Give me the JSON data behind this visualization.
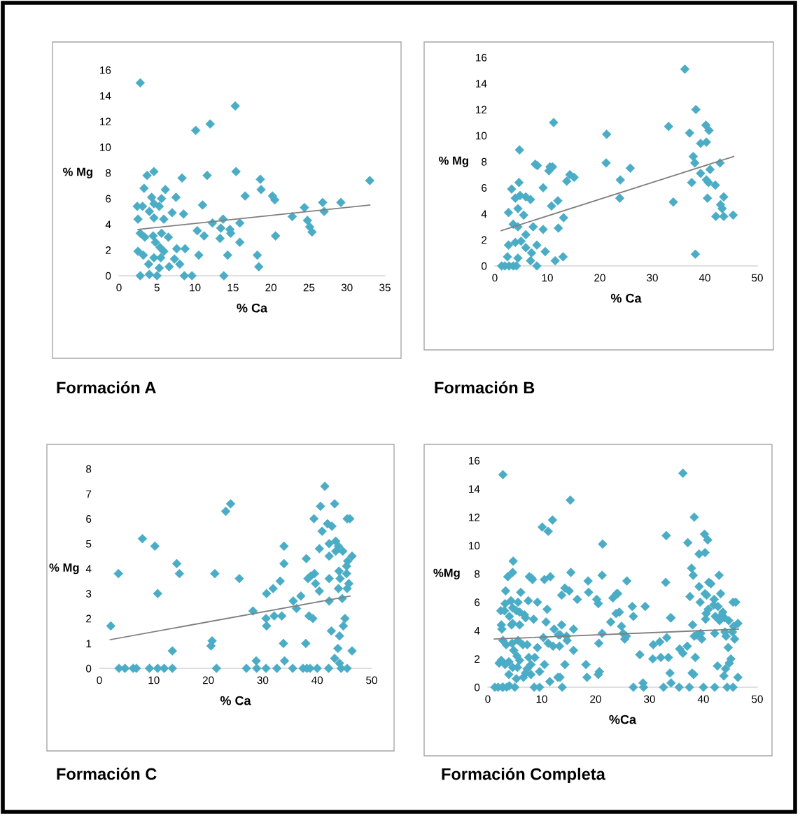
{
  "chart_data": [
    {
      "type": "scatter",
      "title": "Formación A",
      "xlabel": "% Ca",
      "ylabel": "% Mg",
      "xlim": [
        0,
        35
      ],
      "xticks": [
        0,
        5,
        10,
        15,
        20,
        25,
        30,
        35
      ],
      "ylim": [
        0,
        16
      ],
      "yticks": [
        0,
        2,
        4,
        6,
        8,
        10,
        12,
        14,
        16
      ],
      "grid": false,
      "series": [
        {
          "marker": "diamond",
          "color": "#4bacc6",
          "x": [
            2.8,
            15.3,
            12.0,
            10.1,
            4.6,
            3.7,
            15.4,
            11.6,
            8.3,
            18.6,
            33.0,
            3.3,
            6.1,
            18.7,
            16.6,
            7.5,
            20.2,
            20.5,
            29.2,
            26.8,
            2.4,
            3.1,
            11.0,
            24.4,
            27.0,
            4.3,
            4.6,
            5.3,
            5.6,
            4.0,
            4.6,
            2.5,
            7.0,
            8.5,
            5.9,
            22.8,
            13.7,
            15.9,
            12.3,
            24.8,
            25.1,
            25.4,
            10.3,
            11.2,
            13.4,
            14.6,
            14.7,
            13.3,
            20.6,
            2.8,
            3.4,
            4.5,
            5.6,
            6.5,
            4.8,
            15.9,
            5.4,
            2.5,
            3.2,
            5.9,
            7.6,
            8.7,
            7.3,
            8.0,
            5.5,
            4.6,
            10.5,
            14.3,
            18.2,
            18.4,
            3.9,
            6.6,
            5.3,
            2.8,
            5.0,
            8.6,
            9.6,
            13.8,
            4.0
          ],
          "values": [
            15.0,
            13.2,
            11.8,
            11.3,
            8.1,
            7.8,
            8.1,
            7.8,
            7.6,
            7.5,
            7.4,
            6.8,
            6.7,
            6.7,
            6.2,
            6.1,
            6.2,
            5.9,
            5.7,
            5.7,
            5.4,
            5.4,
            5.5,
            5.3,
            5.0,
            6.1,
            5.6,
            5.4,
            6.0,
            5.0,
            4.5,
            4.4,
            4.9,
            4.8,
            4.4,
            4.6,
            4.4,
            4.1,
            4.1,
            4.3,
            3.8,
            3.4,
            3.5,
            3.1,
            3.7,
            3.6,
            3.3,
            2.9,
            3.1,
            3.3,
            3.0,
            3.1,
            3.3,
            3.0,
            2.6,
            2.6,
            2.2,
            1.9,
            1.6,
            1.9,
            2.1,
            2.1,
            1.3,
            0.9,
            1.4,
            1.4,
            1.6,
            1.6,
            1.6,
            0.7,
            0.9,
            0.7,
            0.6,
            0,
            0,
            0,
            0,
            0,
            0.1
          ]
        },
        {
          "type": "line",
          "color": "#7f7f7f",
          "x": [
            2.5,
            33
          ],
          "values": [
            3.6,
            5.5
          ]
        }
      ]
    },
    {
      "type": "scatter",
      "title": "Formación B",
      "xlabel": "% Ca",
      "ylabel": "% Mg",
      "xlim": [
        0,
        50
      ],
      "xticks": [
        0,
        10,
        20,
        30,
        40,
        50
      ],
      "ylim": [
        0,
        16
      ],
      "yticks": [
        0,
        2,
        4,
        6,
        8,
        10,
        12,
        14,
        16
      ],
      "grid": false,
      "series": [
        {
          "marker": "diamond",
          "color": "#4bacc6",
          "x": [
            36.2,
            38.3,
            11.2,
            21.3,
            33.1,
            37.1,
            40.2,
            40.8,
            39.2,
            40.3,
            4.7,
            7.7,
            8.1,
            21.2,
            25.8,
            37.8,
            38.1,
            42.9,
            10.5,
            11.0,
            10.3,
            14.3,
            15.1,
            13.7,
            23.9,
            39.2,
            41.0,
            37.5,
            40.3,
            40.7,
            4.6,
            3.2,
            9.2,
            42.0,
            23.8,
            40.5,
            43.6,
            34.0,
            43.0,
            43.3,
            45.4,
            42.1,
            43.6,
            10.8,
            12.0,
            5.9,
            6.8,
            4.8,
            3.9,
            2.6,
            4.4,
            5.5,
            13.1,
            3.5,
            4.4,
            7.3,
            9.2,
            12.1,
            5.9,
            3.9,
            2.6,
            5.0,
            8.0,
            5.9,
            9.6,
            7.0,
            13.0,
            11.5,
            38.2,
            4.4,
            2.4,
            6.8,
            1.3,
            1.9,
            2.7,
            3.5,
            4.1,
            8.0
          ],
          "values": [
            15.1,
            12.0,
            11.0,
            10.1,
            10.7,
            10.2,
            10.8,
            10.4,
            9.4,
            9.5,
            8.9,
            7.8,
            7.7,
            7.9,
            7.5,
            8.4,
            7.9,
            7.9,
            7.6,
            7.6,
            7.3,
            7.0,
            6.8,
            6.5,
            6.6,
            7.1,
            7.4,
            6.4,
            6.6,
            6.4,
            6.4,
            5.9,
            6.0,
            6.2,
            5.2,
            5.2,
            5.3,
            4.9,
            4.7,
            4.4,
            3.9,
            3.8,
            3.8,
            4.6,
            5.0,
            5.3,
            5.1,
            5.4,
            5.2,
            4.1,
            4.4,
            3.9,
            3.7,
            3.2,
            3.0,
            3.0,
            2.8,
            2.9,
            2.4,
            1.8,
            1.6,
            1.9,
            1.6,
            1.4,
            1.1,
            1.0,
            0.7,
            0.4,
            0.9,
            0.6,
            0.7,
            0.4,
            0,
            0,
            0,
            0,
            0,
            0
          ]
        },
        {
          "type": "line",
          "color": "#7f7f7f",
          "x": [
            1.2,
            45.5
          ],
          "values": [
            2.7,
            8.4
          ]
        }
      ]
    },
    {
      "type": "scatter",
      "title": "Formación C",
      "xlabel": "% Ca",
      "ylabel": "% Mg",
      "xlim": [
        0,
        50
      ],
      "xticks": [
        0,
        10,
        20,
        30,
        40,
        50
      ],
      "ylim": [
        0,
        8
      ],
      "yticks": [
        0,
        1,
        2,
        3,
        4,
        5,
        6,
        7,
        8
      ],
      "grid": false,
      "series": [
        {
          "marker": "diamond",
          "color": "#4bacc6",
          "x": [
            41.4,
            40.6,
            43.2,
            23.2,
            24.1,
            39.4,
            45.5,
            46.0,
            41.9,
            42.7,
            40.9,
            7.9,
            10.2,
            33.9,
            42.2,
            43.4,
            40.4,
            43.9,
            43.4,
            44.7,
            46.4,
            42.2,
            38.0,
            14.2,
            33.9,
            45.6,
            45.4,
            44.0,
            3.5,
            14.7,
            21.2,
            39.5,
            38.8,
            38.3,
            25.7,
            42.2,
            44.2,
            45.4,
            33.2,
            39.7,
            40.4,
            43.9,
            45.8,
            45.5,
            10.7,
            30.7,
            31.9,
            37.0,
            42.2,
            44.6,
            35.6,
            36.2,
            28.2,
            38.5,
            39.2,
            32.1,
            33.5,
            30.6,
            45.1,
            44.8,
            30.7,
            2.1,
            42.6,
            44.1,
            20.7,
            20.5,
            33.8,
            37.9,
            13.4,
            46.4,
            43.8,
            43.2,
            34.0,
            28.8,
            44.1,
            3.6,
            4.7,
            6.2,
            6.8,
            9.2,
            10.7,
            11.9,
            13.4,
            21.5,
            27.0,
            28.9,
            30.6,
            32.6,
            35.5,
            37.4,
            38.1,
            38.7,
            40.0,
            42.1,
            44.4,
            45.5
          ],
          "values": [
            7.3,
            6.5,
            6.6,
            6.3,
            6.6,
            6.0,
            6.0,
            6.0,
            5.8,
            5.7,
            5.5,
            5.2,
            4.9,
            4.9,
            5.0,
            5.1,
            4.8,
            4.9,
            4.7,
            4.7,
            4.5,
            4.5,
            4.4,
            4.2,
            4.2,
            4.3,
            4.1,
            3.9,
            3.8,
            3.8,
            3.8,
            3.8,
            3.7,
            3.6,
            3.6,
            3.6,
            3.6,
            3.8,
            3.5,
            3.4,
            3.1,
            3.2,
            3.4,
            3.2,
            3.0,
            3.0,
            3.2,
            2.9,
            2.7,
            2.8,
            2.7,
            2.4,
            2.3,
            2.1,
            2.0,
            2.1,
            2.1,
            2.0,
            2.0,
            1.7,
            1.7,
            1.7,
            1.5,
            1.3,
            1.1,
            0.9,
            1.0,
            1.0,
            0.7,
            0.7,
            0.8,
            0.4,
            0.3,
            0.3,
            0.2,
            0,
            0,
            0,
            0,
            0,
            0,
            0,
            0,
            0,
            0,
            0,
            0,
            0,
            0,
            0,
            0,
            0,
            0,
            0,
            0,
            0
          ]
        },
        {
          "type": "line",
          "color": "#7f7f7f",
          "x": [
            2,
            46
          ],
          "values": [
            1.15,
            2.9
          ]
        }
      ]
    },
    {
      "type": "scatter",
      "title": "Formación Completa",
      "xlabel": "%Ca",
      "ylabel": "%Mg",
      "xlim": [
        0,
        50
      ],
      "xticks": [
        0,
        10,
        20,
        30,
        40,
        50
      ],
      "ylim": [
        0,
        16
      ],
      "yticks": [
        0,
        2,
        4,
        6,
        8,
        10,
        12,
        14,
        16
      ],
      "grid": false,
      "series": [
        {
          "marker": "diamond",
          "color": "#4bacc6",
          "x": [
            2.8,
            15.3,
            12.0,
            10.1,
            4.6,
            3.7,
            15.4,
            11.6,
            8.3,
            18.6,
            33.0,
            3.3,
            6.1,
            18.7,
            16.6,
            7.5,
            20.2,
            20.5,
            29.2,
            26.8,
            2.4,
            3.1,
            11.0,
            24.4,
            27.0,
            4.3,
            4.6,
            5.3,
            5.6,
            4.0,
            4.6,
            2.5,
            7.0,
            8.5,
            5.9,
            22.8,
            13.7,
            15.9,
            12.3,
            24.8,
            25.1,
            25.4,
            10.3,
            11.2,
            13.4,
            14.6,
            14.7,
            13.3,
            20.6,
            2.8,
            3.4,
            4.5,
            5.6,
            6.5,
            4.8,
            15.9,
            5.4,
            2.5,
            3.2,
            5.9,
            7.6,
            8.7,
            7.3,
            8.0,
            5.5,
            4.6,
            10.5,
            14.3,
            18.2,
            18.4,
            3.9,
            6.6,
            5.3,
            2.8,
            5.0,
            8.6,
            9.6,
            13.8,
            4.0,
            36.2,
            38.3,
            11.2,
            21.3,
            33.1,
            37.1,
            40.2,
            40.8,
            39.2,
            40.3,
            4.7,
            7.7,
            8.1,
            21.2,
            25.8,
            37.8,
            38.1,
            42.9,
            10.5,
            14.3,
            15.1,
            13.7,
            23.9,
            39.2,
            41.0,
            37.5,
            40.3,
            3.2,
            9.2,
            42.0,
            23.8,
            40.5,
            43.6,
            34.0,
            43.0,
            45.4,
            42.1,
            10.8,
            5.9,
            6.8,
            2.6,
            4.4,
            13.1,
            7.3,
            9.2,
            12.1,
            3.9,
            8.0,
            9.6,
            7.0,
            13.0,
            11.5,
            38.2,
            1.3,
            1.9,
            2.7,
            3.5,
            41.4,
            40.6,
            43.2,
            23.2,
            24.1,
            39.4,
            45.5,
            46.0,
            41.9,
            42.7,
            40.9,
            33.9,
            42.2,
            43.4,
            40.4,
            43.9,
            44.7,
            46.4,
            38.0,
            45.6,
            44.0,
            21.2,
            39.5,
            38.8,
            38.3,
            25.7,
            44.2,
            33.2,
            39.7,
            45.8,
            30.7,
            31.9,
            37.0,
            44.6,
            35.6,
            36.2,
            28.2,
            38.5,
            32.1,
            33.5,
            30.6,
            45.1,
            44.8,
            2.1,
            42.6,
            44.1,
            20.7,
            20.5,
            33.8,
            37.9,
            13.4,
            46.4,
            43.8,
            34.0,
            28.8,
            27.0,
            28.9,
            32.6,
            35.5,
            37.4,
            40.0,
            42.1,
            44.4,
            45.5
          ],
          "values": [
            15.0,
            13.2,
            11.8,
            11.3,
            8.1,
            7.8,
            8.1,
            7.8,
            7.6,
            7.5,
            7.4,
            6.8,
            6.7,
            6.7,
            6.2,
            6.1,
            6.2,
            5.9,
            5.7,
            5.7,
            5.4,
            5.4,
            5.5,
            5.3,
            5.0,
            6.1,
            5.6,
            5.4,
            6.0,
            5.0,
            4.5,
            4.4,
            4.9,
            4.8,
            4.4,
            4.6,
            4.4,
            4.1,
            4.1,
            4.3,
            3.8,
            3.4,
            3.5,
            3.1,
            3.7,
            3.6,
            3.3,
            2.9,
            3.1,
            3.3,
            3.0,
            3.1,
            3.3,
            3.0,
            2.6,
            2.6,
            2.2,
            1.9,
            1.6,
            1.9,
            2.1,
            2.1,
            1.3,
            0.9,
            1.4,
            1.4,
            1.6,
            1.6,
            1.6,
            0.7,
            0.9,
            0.7,
            0.6,
            0,
            0,
            0,
            0,
            0,
            0.1,
            15.1,
            12.0,
            11.0,
            10.1,
            10.7,
            10.2,
            10.8,
            10.4,
            9.4,
            9.5,
            8.9,
            7.8,
            7.7,
            7.9,
            7.5,
            8.4,
            7.9,
            7.9,
            7.6,
            7.0,
            6.8,
            6.5,
            6.6,
            7.1,
            7.4,
            6.4,
            6.6,
            5.9,
            6.0,
            6.2,
            5.2,
            5.2,
            5.3,
            4.9,
            4.7,
            3.9,
            3.8,
            4.6,
            5.3,
            5.1,
            4.1,
            4.4,
            3.7,
            3.0,
            2.8,
            2.9,
            1.8,
            1.6,
            1.1,
            1.0,
            0.7,
            0.4,
            0.9,
            0,
            0,
            0,
            0,
            7.3,
            6.5,
            6.6,
            6.3,
            6.6,
            6.0,
            6.0,
            6.0,
            5.8,
            5.7,
            5.5,
            4.9,
            5.0,
            5.1,
            4.8,
            4.9,
            4.7,
            4.5,
            4.4,
            4.3,
            3.9,
            3.8,
            3.8,
            3.7,
            3.6,
            3.6,
            3.6,
            3.5,
            3.4,
            3.4,
            3.0,
            3.2,
            2.9,
            2.8,
            2.7,
            2.4,
            2.3,
            2.1,
            2.1,
            2.1,
            2.0,
            2.0,
            1.7,
            1.7,
            1.5,
            1.3,
            1.1,
            0.9,
            1.0,
            1.0,
            0.7,
            0.7,
            0.8,
            0.3,
            0.3,
            0,
            0,
            0,
            0,
            0,
            0,
            0,
            0,
            0
          ]
        },
        {
          "type": "line",
          "color": "#7f7f7f",
          "x": [
            1.2,
            46.5
          ],
          "values": [
            3.4,
            4.1
          ]
        }
      ]
    }
  ]
}
